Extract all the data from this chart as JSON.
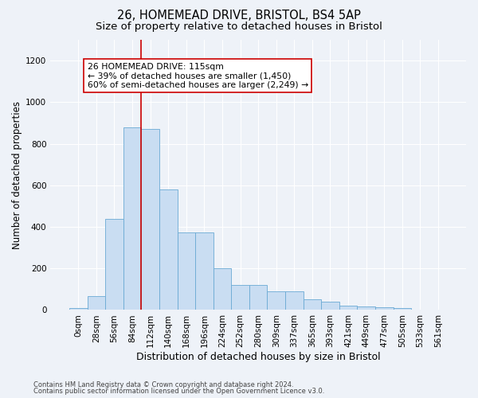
{
  "title1": "26, HOMEMEAD DRIVE, BRISTOL, BS4 5AP",
  "title2": "Size of property relative to detached houses in Bristol",
  "xlabel": "Distribution of detached houses by size in Bristol",
  "ylabel": "Number of detached properties",
  "bar_labels": [
    "0sqm",
    "28sqm",
    "56sqm",
    "84sqm",
    "112sqm",
    "140sqm",
    "168sqm",
    "196sqm",
    "224sqm",
    "252sqm",
    "280sqm",
    "309sqm",
    "337sqm",
    "365sqm",
    "393sqm",
    "421sqm",
    "449sqm",
    "477sqm",
    "505sqm",
    "533sqm",
    "561sqm"
  ],
  "bar_values": [
    10,
    65,
    440,
    880,
    870,
    580,
    375,
    375,
    200,
    120,
    120,
    90,
    90,
    50,
    40,
    20,
    18,
    15,
    10,
    3,
    2
  ],
  "bar_color": "#c9ddf2",
  "bar_edgecolor": "#6aaad4",
  "vline_color": "#cc0000",
  "annotation_text": "26 HOMEMEAD DRIVE: 115sqm\n← 39% of detached houses are smaller (1,450)\n60% of semi-detached houses are larger (2,249) →",
  "annotation_box_edgecolor": "#cc0000",
  "annotation_box_facecolor": "#ffffff",
  "ylim": [
    0,
    1300
  ],
  "yticks": [
    0,
    200,
    400,
    600,
    800,
    1000,
    1200
  ],
  "footer1": "Contains HM Land Registry data © Crown copyright and database right 2024.",
  "footer2": "Contains public sector information licensed under the Open Government Licence v3.0.",
  "bg_color": "#eef2f8",
  "title1_fontsize": 10.5,
  "title2_fontsize": 9.5,
  "xlabel_fontsize": 9,
  "ylabel_fontsize": 8.5,
  "tick_fontsize": 7.5,
  "annotation_fontsize": 7.8,
  "footer_fontsize": 6.0
}
